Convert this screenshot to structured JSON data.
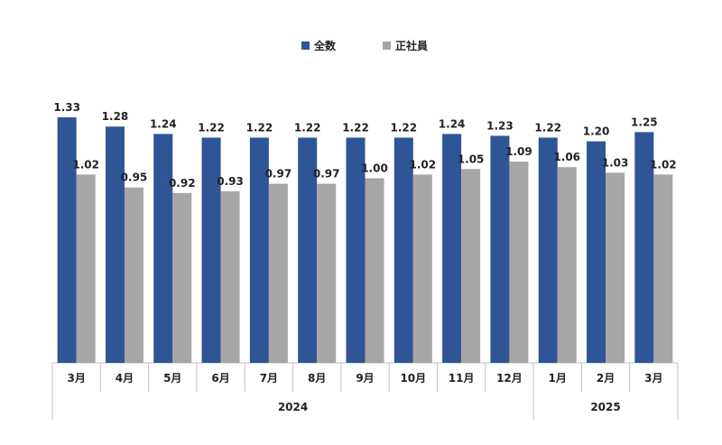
{
  "chart_data": {
    "type": "bar",
    "categories": [
      "3月",
      "4月",
      "5月",
      "6月",
      "7月",
      "8月",
      "9月",
      "10月",
      "11月",
      "12月",
      "1月",
      "2月",
      "3月"
    ],
    "groups": [
      {
        "label": "2024",
        "count": 10
      },
      {
        "label": "2025",
        "count": 3
      }
    ],
    "series": [
      {
        "name": "全数",
        "color": "#2f5597",
        "values": [
          1.33,
          1.28,
          1.24,
          1.22,
          1.22,
          1.22,
          1.22,
          1.22,
          1.24,
          1.23,
          1.22,
          1.2,
          1.25
        ],
        "labels": [
          "1.33",
          "1.28",
          "1.24",
          "1.22",
          "1.22",
          "1.22",
          "1.22",
          "1.22",
          "1.24",
          "1.23",
          "1.22",
          "1.20",
          "1.25"
        ]
      },
      {
        "name": "正社員",
        "color": "#a6a6a6",
        "values": [
          1.02,
          0.95,
          0.92,
          0.93,
          0.97,
          0.97,
          1.0,
          1.02,
          1.05,
          1.09,
          1.06,
          1.03,
          1.02
        ],
        "labels": [
          "1.02",
          "0.95",
          "0.92",
          "0.93",
          "0.97",
          "0.97",
          "1.00",
          "1.02",
          "1.05",
          "1.09",
          "1.06",
          "1.03",
          "1.02"
        ]
      }
    ],
    "ylim": [
      0,
      1.55
    ],
    "legend_position": "top-center",
    "grid": false
  }
}
